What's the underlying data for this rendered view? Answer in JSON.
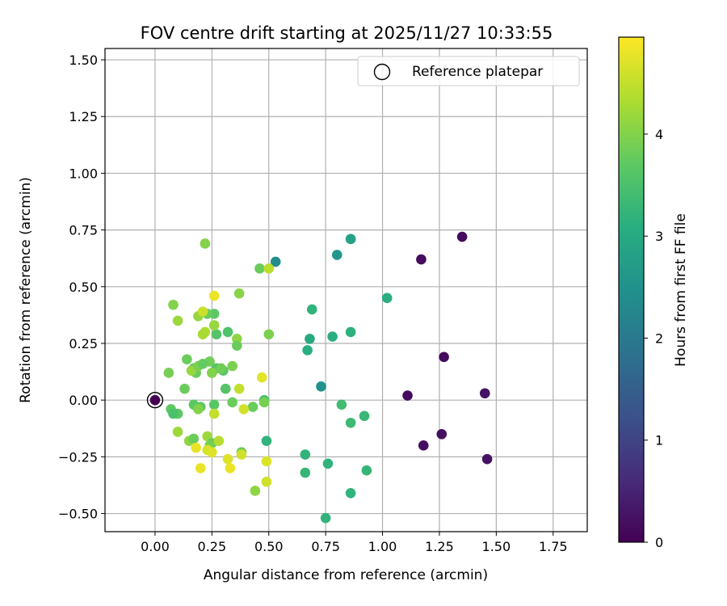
{
  "chart_data": {
    "type": "scatter",
    "title": "FOV centre drift starting at 2025/11/27 10:33:55",
    "xlabel": "Angular distance from reference (arcmin)",
    "ylabel": "Rotation from reference (arcmin)",
    "xlim": [
      -0.22,
      1.9
    ],
    "ylim": [
      -0.58,
      1.55
    ],
    "xticks": [
      "0.00",
      "0.25",
      "0.50",
      "0.75",
      "1.00",
      "1.25",
      "1.50",
      "1.75"
    ],
    "yticks": [
      "−0.50",
      "−0.25",
      "0.00",
      "0.25",
      "0.50",
      "0.75",
      "1.00",
      "1.25",
      "1.50"
    ],
    "grid": true,
    "legend": {
      "placement": "top-right",
      "entries": [
        "Reference platepar"
      ]
    },
    "colorbar": {
      "label": "Hours from first FF file",
      "colormap": "viridis",
      "range": [
        0,
        4.95
      ],
      "ticks": [
        "0",
        "1",
        "2",
        "3",
        "4"
      ]
    },
    "reference_point": {
      "x": 0.0,
      "y": 0.0,
      "label": "Reference platepar"
    },
    "series": [
      {
        "x": [
          1.35,
          1.17,
          1.27,
          1.11,
          1.45,
          1.46,
          1.18,
          1.26,
          0.53,
          0.0,
          0.86,
          0.86,
          0.8,
          1.02,
          0.69,
          0.86,
          0.78,
          0.68,
          0.67,
          0.73,
          0.82,
          0.92,
          0.86,
          0.49,
          0.66,
          0.76,
          0.66,
          0.93,
          0.86,
          0.75,
          0.26,
          0.27,
          0.48,
          0.22,
          0.46,
          0.37,
          0.5,
          0.08,
          0.19,
          0.23,
          0.1,
          0.26,
          0.22,
          0.32,
          0.27,
          0.36,
          0.14,
          0.24,
          0.34,
          0.18,
          0.17,
          0.16,
          0.19,
          0.21,
          0.3,
          0.29,
          0.06,
          0.25,
          0.34,
          0.31,
          0.13,
          0.17,
          0.2,
          0.43,
          0.48,
          0.07,
          0.1,
          0.19,
          0.26,
          0.08,
          0.36,
          0.1,
          0.15,
          0.17,
          0.23,
          0.25,
          0.38,
          0.24,
          0.44,
          0.25,
          0.21,
          0.5,
          0.47,
          0.23,
          0.2,
          0.37,
          0.39,
          0.28,
          0.26,
          0.25,
          0.38,
          0.49,
          0.32,
          0.33,
          0.49,
          0.18,
          0.26,
          0.21
        ],
        "y": [
          0.72,
          0.62,
          0.19,
          0.02,
          0.03,
          -0.26,
          -0.2,
          -0.15,
          0.61,
          0.0,
          0.71,
          0.71,
          0.64,
          0.45,
          0.4,
          0.3,
          0.28,
          0.27,
          0.22,
          0.06,
          -0.02,
          -0.07,
          -0.1,
          -0.18,
          -0.24,
          -0.28,
          -0.32,
          -0.31,
          -0.41,
          -0.52,
          0.38,
          0.29,
          0.0,
          0.69,
          0.58,
          0.47,
          0.29,
          0.42,
          0.37,
          0.38,
          0.35,
          0.33,
          0.3,
          0.3,
          0.14,
          0.27,
          0.18,
          0.17,
          0.15,
          0.12,
          0.14,
          0.13,
          0.15,
          0.16,
          0.13,
          0.14,
          0.12,
          0.12,
          -0.01,
          0.05,
          0.05,
          -0.02,
          -0.03,
          -0.03,
          -0.01,
          -0.04,
          -0.06,
          -0.04,
          -0.02,
          -0.06,
          0.24,
          -0.14,
          -0.18,
          -0.17,
          -0.16,
          -0.19,
          -0.23,
          -0.2,
          -0.4,
          0.12,
          0.39,
          0.58,
          0.1,
          -0.22,
          -0.3,
          0.05,
          -0.04,
          -0.18,
          -0.06,
          -0.23,
          -0.24,
          -0.27,
          -0.26,
          -0.3,
          -0.36,
          -0.21,
          0.46,
          0.29
        ],
        "hours": [
          0.15,
          0.15,
          0.15,
          0.15,
          0.25,
          0.25,
          0.2,
          0.2,
          2.4,
          0.0,
          2.85,
          2.85,
          2.6,
          3.1,
          3.2,
          3.15,
          3.1,
          3.0,
          3.1,
          2.5,
          3.4,
          3.3,
          3.35,
          3.2,
          3.2,
          3.2,
          3.25,
          3.25,
          3.2,
          3.2,
          3.7,
          3.6,
          3.5,
          4.0,
          3.8,
          4.05,
          3.95,
          4.0,
          4.15,
          3.8,
          4.2,
          4.15,
          4.35,
          3.55,
          3.6,
          4.1,
          3.8,
          3.85,
          3.95,
          3.8,
          3.7,
          4.15,
          3.95,
          3.75,
          3.65,
          3.85,
          3.9,
          4.0,
          3.8,
          3.6,
          3.8,
          3.7,
          3.7,
          3.8,
          3.9,
          3.7,
          3.7,
          4.0,
          3.65,
          3.5,
          3.8,
          4.2,
          4.1,
          3.8,
          4.2,
          3.75,
          3.8,
          3.9,
          4.1,
          4.0,
          4.55,
          4.45,
          4.75,
          4.65,
          4.8,
          4.5,
          4.6,
          4.4,
          4.5,
          4.7,
          4.6,
          4.7,
          4.7,
          4.8,
          4.6,
          4.8,
          4.8,
          4.3
        ]
      }
    ]
  }
}
